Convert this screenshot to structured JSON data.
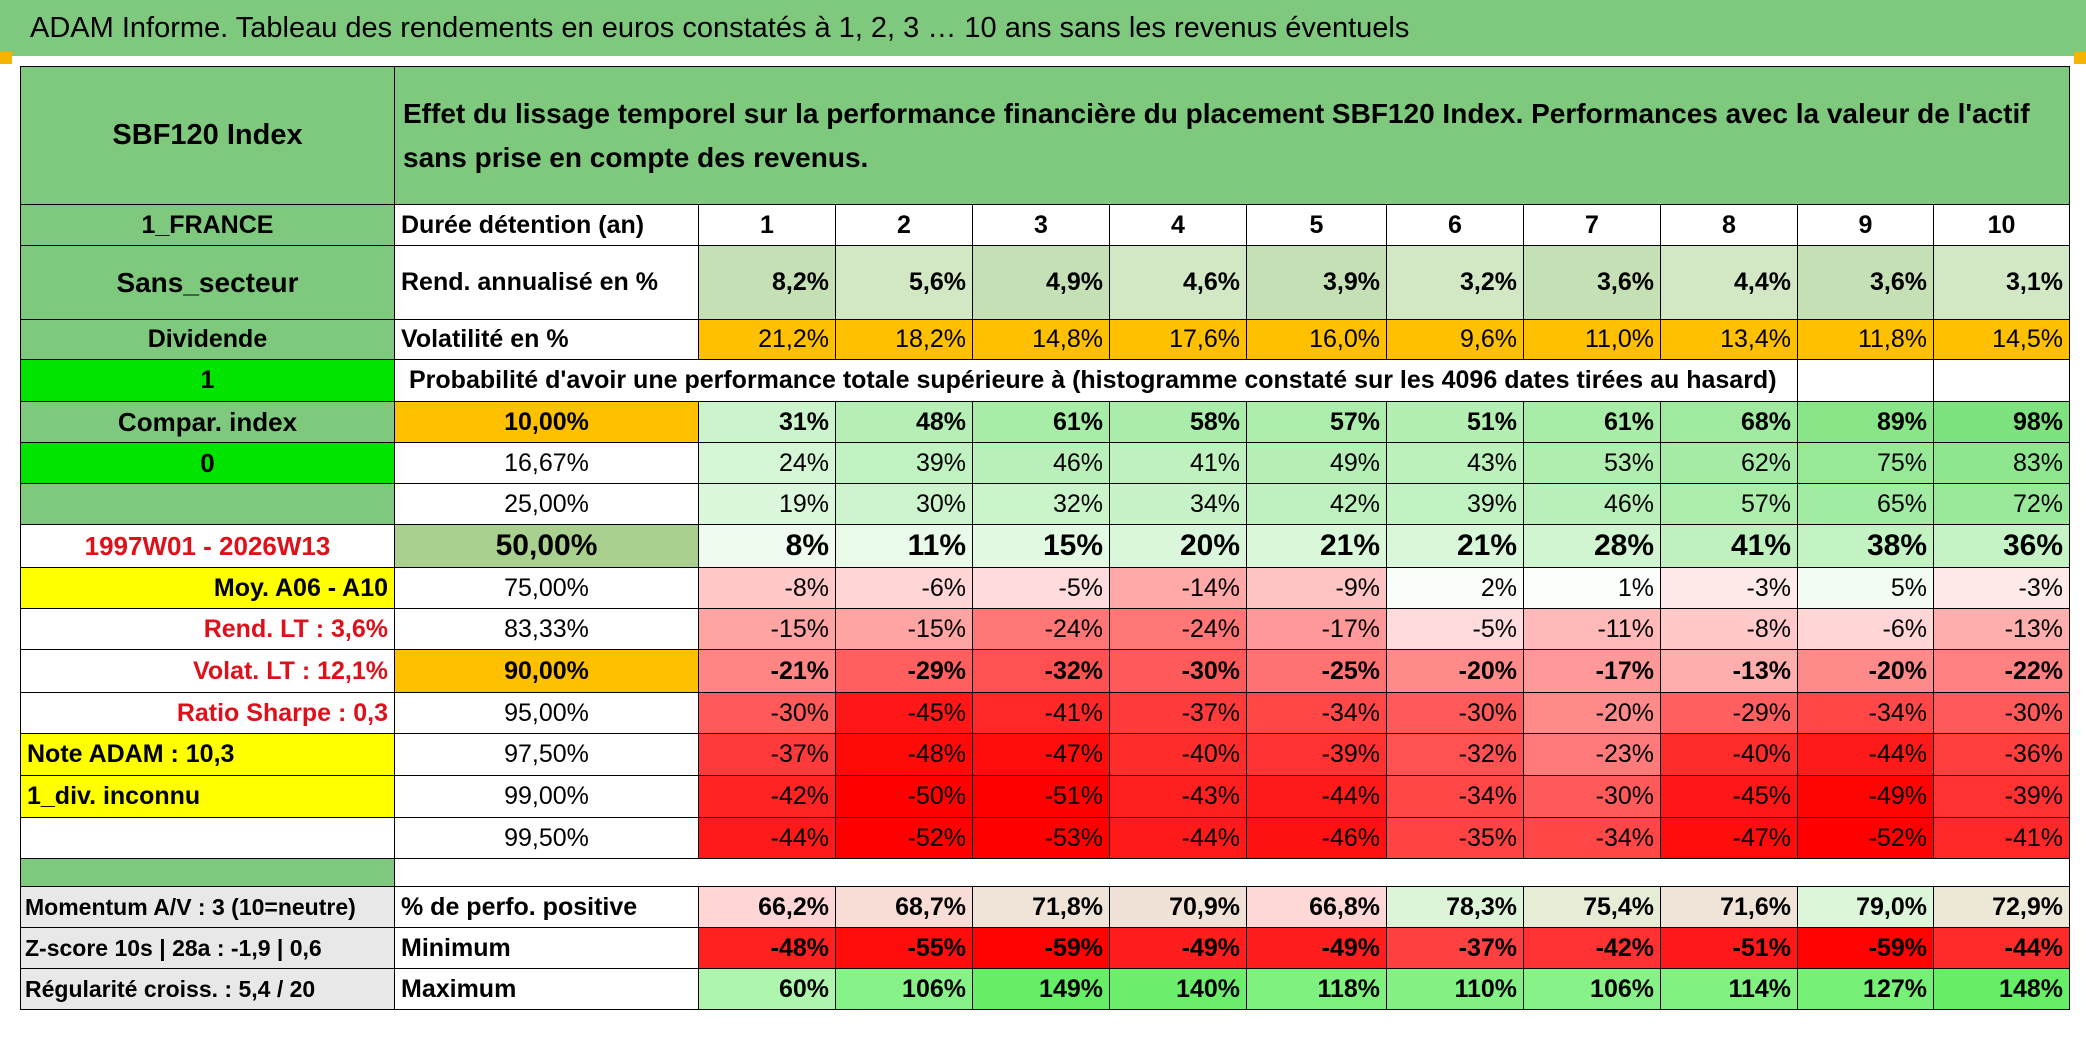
{
  "title": "ADAM Informe. Tableau des rendements en euros constatés à 1, 2, 3 … 10 ans sans les revenus éventuels",
  "left": {
    "index_name": "SBF120 Index",
    "country": "1_FRANCE",
    "sector": "Sans_secteur",
    "dividend": "Dividende",
    "flag1": "1",
    "compar": "Compar. index",
    "flag0": "0",
    "period": "1997W01 - 2026W13",
    "moy": "Moy. A06 - A10",
    "rend_lt": "Rend. LT :   3,6%",
    "volat_lt": "Volat. LT :   12,1%",
    "sharpe": "Ratio Sharpe :    0,3",
    "note": "Note ADAM : 10,3",
    "div_unknown": "1_div. inconnu",
    "momentum": "Momentum A/V : 3 (10=neutre)",
    "zscore": "Z-score 10s | 28a : -1,9 | 0,6",
    "regularite": "Régularité croiss. : 5,4 / 20"
  },
  "header_text": "Effet du lissage temporel sur la performance financière du placement SBF120 Index. Performances avec la valeur de l'actif sans prise en compte des revenus.",
  "duree_label": "Durée détention (an)",
  "years": [
    "1",
    "2",
    "3",
    "4",
    "5",
    "6",
    "7",
    "8",
    "9",
    "10"
  ],
  "rend_label": "Rend. annualisé en %",
  "rend": [
    "8,2%",
    "5,6%",
    "4,9%",
    "4,6%",
    "3,9%",
    "3,2%",
    "3,6%",
    "4,4%",
    "3,6%",
    "3,1%"
  ],
  "vol_label": "Volatilité en %",
  "vol": [
    "21,2%",
    "18,2%",
    "14,8%",
    "17,6%",
    "16,0%",
    "9,6%",
    "11,0%",
    "13,4%",
    "11,8%",
    "14,5%"
  ],
  "prob_label": "Probabilité d'avoir une performance totale supérieure à (histogramme constaté sur les 4096 dates tirées au hasard)",
  "percentiles": [
    {
      "p": "10,00%",
      "v": [
        "31%",
        "48%",
        "61%",
        "58%",
        "57%",
        "51%",
        "61%",
        "68%",
        "89%",
        "98%"
      ]
    },
    {
      "p": "16,67%",
      "v": [
        "24%",
        "39%",
        "46%",
        "41%",
        "49%",
        "43%",
        "53%",
        "62%",
        "75%",
        "83%"
      ]
    },
    {
      "p": "25,00%",
      "v": [
        "19%",
        "30%",
        "32%",
        "34%",
        "42%",
        "39%",
        "46%",
        "57%",
        "65%",
        "72%"
      ]
    },
    {
      "p": "50,00%",
      "v": [
        "8%",
        "11%",
        "15%",
        "20%",
        "21%",
        "21%",
        "28%",
        "41%",
        "38%",
        "36%"
      ]
    },
    {
      "p": "75,00%",
      "v": [
        "-8%",
        "-6%",
        "-5%",
        "-14%",
        "-9%",
        "2%",
        "1%",
        "-3%",
        "5%",
        "-3%"
      ]
    },
    {
      "p": "83,33%",
      "v": [
        "-15%",
        "-15%",
        "-24%",
        "-24%",
        "-17%",
        "-5%",
        "-11%",
        "-8%",
        "-6%",
        "-13%"
      ]
    },
    {
      "p": "90,00%",
      "v": [
        "-21%",
        "-29%",
        "-32%",
        "-30%",
        "-25%",
        "-20%",
        "-17%",
        "-13%",
        "-20%",
        "-22%"
      ]
    },
    {
      "p": "95,00%",
      "v": [
        "-30%",
        "-45%",
        "-41%",
        "-37%",
        "-34%",
        "-30%",
        "-20%",
        "-29%",
        "-34%",
        "-30%"
      ]
    },
    {
      "p": "97,50%",
      "v": [
        "-37%",
        "-48%",
        "-47%",
        "-40%",
        "-39%",
        "-32%",
        "-23%",
        "-40%",
        "-44%",
        "-36%"
      ]
    },
    {
      "p": "99,00%",
      "v": [
        "-42%",
        "-50%",
        "-51%",
        "-43%",
        "-44%",
        "-34%",
        "-30%",
        "-45%",
        "-49%",
        "-39%"
      ]
    },
    {
      "p": "99,50%",
      "v": [
        "-44%",
        "-52%",
        "-53%",
        "-44%",
        "-46%",
        "-35%",
        "-34%",
        "-47%",
        "-52%",
        "-41%"
      ]
    }
  ],
  "pos_label": "% de perfo. positive",
  "pos": [
    "66,2%",
    "68,7%",
    "71,8%",
    "70,9%",
    "66,8%",
    "78,3%",
    "75,4%",
    "71,6%",
    "79,0%",
    "72,9%"
  ],
  "min_label": "Minimum",
  "min": [
    "-48%",
    "-55%",
    "-59%",
    "-49%",
    "-49%",
    "-37%",
    "-42%",
    "-51%",
    "-59%",
    "-44%"
  ],
  "max_label": "Maximum",
  "max": [
    "60%",
    "106%",
    "149%",
    "140%",
    "118%",
    "110%",
    "106%",
    "114%",
    "127%",
    "148%"
  ],
  "colors": {
    "title_green": "#7fc97f",
    "bright_green": "#00e400",
    "yellow": "#ffff00",
    "orange": "#ffc000",
    "red_text": "#e0101a"
  }
}
